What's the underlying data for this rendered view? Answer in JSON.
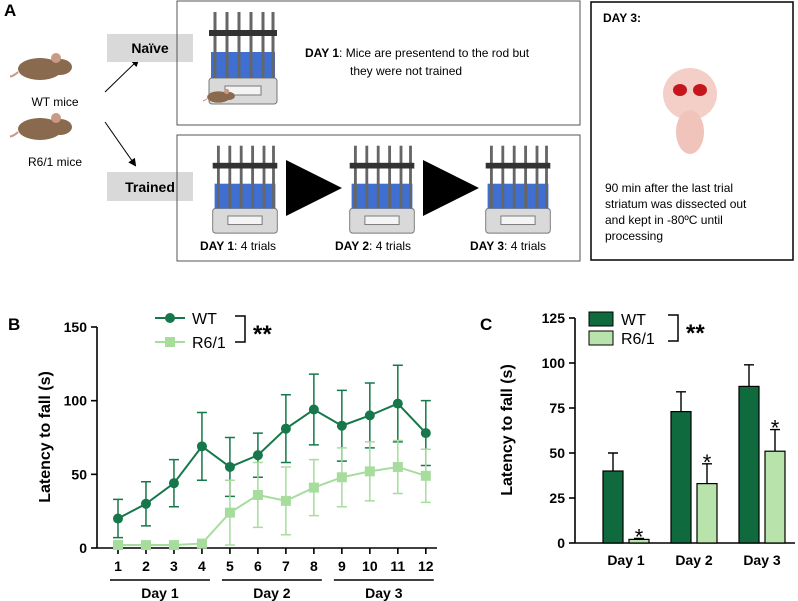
{
  "panel_a": {
    "letter": "A",
    "mice": [
      "WT mice",
      "R6/1 mice"
    ],
    "naive_label": "Naïve",
    "trained_label": "Trained",
    "naive_box": {
      "day": "DAY 1",
      "lines": [
        ": Mice are presentend to the rod but",
        "they were not trained"
      ]
    },
    "trained_steps": [
      {
        "day": "DAY 1",
        "text": ": 4 trials"
      },
      {
        "day": "DAY 2",
        "text": ": 4 trials"
      },
      {
        "day": "DAY 3",
        "text": ": 4 trials"
      }
    ],
    "day3_box": {
      "title": "DAY 3:",
      "lines": [
        "90 min after the last trial",
        "striatum was dissected out",
        "and kept in -80ºC until",
        "processing"
      ]
    }
  },
  "chart_data": [
    {
      "type": "line",
      "panel": "B",
      "y_label": "Latency to fall (s)",
      "x": [
        1,
        2,
        3,
        4,
        5,
        6,
        7,
        8,
        9,
        10,
        11,
        12
      ],
      "xlim": [
        0.25,
        12.4
      ],
      "xticks": [
        1,
        2,
        3,
        4,
        5,
        6,
        7,
        8,
        9,
        10,
        11,
        12
      ],
      "ylim": [
        0,
        150
      ],
      "yticks": [
        0,
        50,
        100,
        150
      ],
      "groups": [
        {
          "label": "Day 1",
          "from": 1,
          "to": 4
        },
        {
          "label": "Day 2",
          "from": 5,
          "to": 8
        },
        {
          "label": "Day 3",
          "from": 9,
          "to": 12
        }
      ],
      "series": [
        {
          "name": "WT",
          "color": "#16774a",
          "marker": "circle",
          "values": [
            20,
            30,
            44,
            69,
            55,
            63,
            81,
            94,
            83,
            90,
            98,
            78
          ],
          "errors": [
            13,
            15,
            16,
            23,
            20,
            15,
            23,
            24,
            24,
            22,
            26,
            22
          ]
        },
        {
          "name": "R6/1",
          "color": "#a6dd9d",
          "marker": "square",
          "values": [
            2,
            2,
            2,
            3,
            24,
            36,
            32,
            41,
            48,
            52,
            55,
            49
          ],
          "errors": [
            1,
            1,
            1,
            1,
            22,
            22,
            23,
            19,
            20,
            20,
            18,
            18
          ]
        }
      ],
      "significance": "**"
    },
    {
      "type": "bar",
      "panel": "C",
      "y_label": "Latency to fall (s)",
      "categories": [
        "Day 1",
        "Day 2",
        "Day 3"
      ],
      "ylim": [
        0,
        125
      ],
      "yticks": [
        0,
        25,
        50,
        75,
        100,
        125
      ],
      "series": [
        {
          "name": "WT",
          "color": "#0f6b3e",
          "values": [
            40,
            73,
            87
          ],
          "errors": [
            10,
            11,
            12
          ]
        },
        {
          "name": "R6/1",
          "color": "#b8e4ab",
          "values": [
            2,
            33,
            51
          ],
          "errors": [
            0.5,
            11,
            12
          ],
          "marks": [
            "*",
            "*",
            "*"
          ]
        }
      ],
      "significance": "**"
    }
  ]
}
